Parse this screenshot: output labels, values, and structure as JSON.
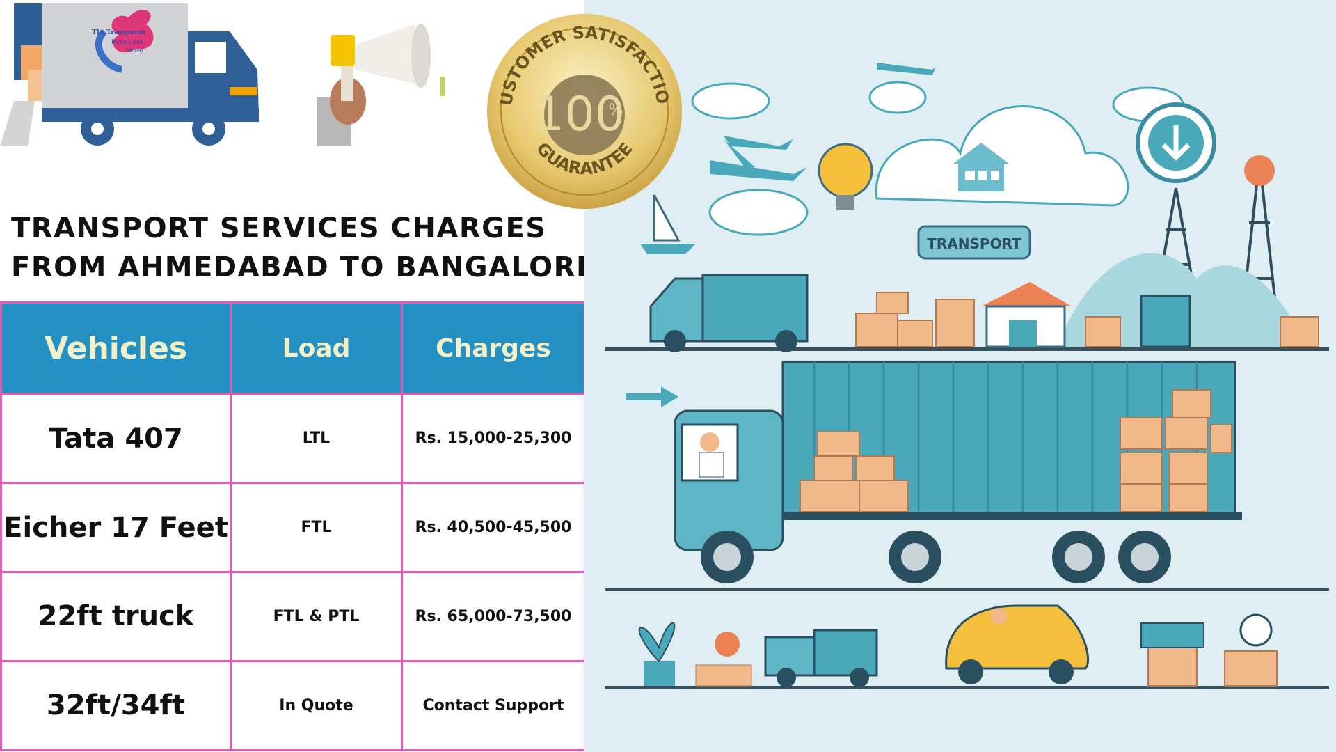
{
  "header": {
    "title_line1": "TRANSPORT SERVICES CHARGES",
    "title_line2": "FROM AHMEDABAD TO BANGALORE"
  },
  "logo": {
    "line1": "The Transporter",
    "line2": "Packers And",
    "line3": "Movers"
  },
  "seal": {
    "top_text": "CUSTOMER SATISFACTION",
    "value": "100",
    "unit": "%",
    "bottom_text": "GUARANTEE"
  },
  "illustration": {
    "sign_text": "TRANSPORT"
  },
  "table": {
    "headers": [
      "Vehicles",
      "Load",
      "Charges"
    ],
    "rows": [
      {
        "vehicle": "Tata 407",
        "load": "LTL",
        "charges": "Rs. 15,000-25,300"
      },
      {
        "vehicle": "Eicher 17 Feet",
        "load": "FTL",
        "charges": "Rs. 40,500-45,500"
      },
      {
        "vehicle": "22ft truck",
        "load": "FTL & PTL",
        "charges": "Rs. 65,000-73,500"
      },
      {
        "vehicle": "32ft/34ft",
        "load": "In Quote",
        "charges": "Contact Support"
      }
    ]
  },
  "colors": {
    "header_bg": "#2391c4",
    "header_text": "#f3f0c8",
    "grid_border": "#e05cb6",
    "illustration_bg": "#dfeef2",
    "teal": "#4aa8bb",
    "box": "#f1b98a",
    "seal_gold": "#e6c463"
  }
}
